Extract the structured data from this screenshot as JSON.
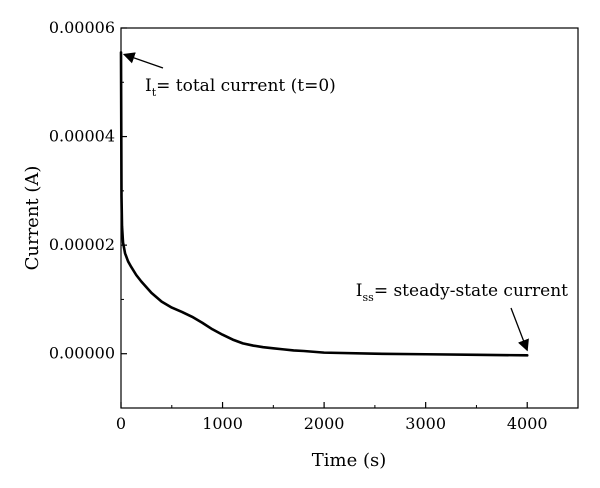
{
  "chart_data": {
    "type": "line",
    "title": "",
    "xlabel": "Time (s)",
    "ylabel": "Current (A)",
    "xlim": [
      0,
      4500
    ],
    "ylim": [
      -1e-05,
      6e-05
    ],
    "x_ticks": [
      {
        "value": 0,
        "label": "0"
      },
      {
        "value": 1000,
        "label": "1000"
      },
      {
        "value": 2000,
        "label": "2000"
      },
      {
        "value": 3000,
        "label": "3000"
      },
      {
        "value": 4000,
        "label": "4000"
      }
    ],
    "y_ticks": [
      {
        "value": 0,
        "label": "0.00000"
      },
      {
        "value": 2e-05,
        "label": "0.00002"
      },
      {
        "value": 4e-05,
        "label": "0.00004"
      },
      {
        "value": 6e-05,
        "label": "0.00006"
      }
    ],
    "grid": false,
    "series": [
      {
        "x": [
          0,
          5,
          10,
          20,
          40,
          70,
          100,
          150,
          200,
          300,
          400,
          500,
          600,
          700,
          800,
          900,
          1000,
          1100,
          1200,
          1300,
          1400,
          1500,
          1600,
          1700,
          1800,
          2000,
          2500,
          3000,
          3500,
          4000
        ],
        "y": [
          5.55e-05,
          2.9e-05,
          2.35e-05,
          2.05e-05,
          1.85e-05,
          1.7e-05,
          1.6e-05,
          1.45e-05,
          1.33e-05,
          1.12e-05,
          9.6e-06,
          8.5e-06,
          7.7e-06,
          6.8e-06,
          5.7e-06,
          4.5e-06,
          3.5e-06,
          2.6e-06,
          1.9e-06,
          1.5e-06,
          1.2e-06,
          1e-06,
          8e-07,
          6e-07,
          5e-07,
          2e-07,
          0.0,
          -1e-07,
          -2e-07,
          -3e-07
        ],
        "color": "#000000"
      }
    ],
    "annotations": [
      {
        "main": "I",
        "sub": "t",
        "rest": "= total current (t=0)",
        "target_x": 0,
        "target_y": 5.55e-05
      },
      {
        "main": "I",
        "sub": "ss",
        "rest": "= steady-state current",
        "target_x": 4000,
        "target_y": -3e-07
      }
    ]
  }
}
